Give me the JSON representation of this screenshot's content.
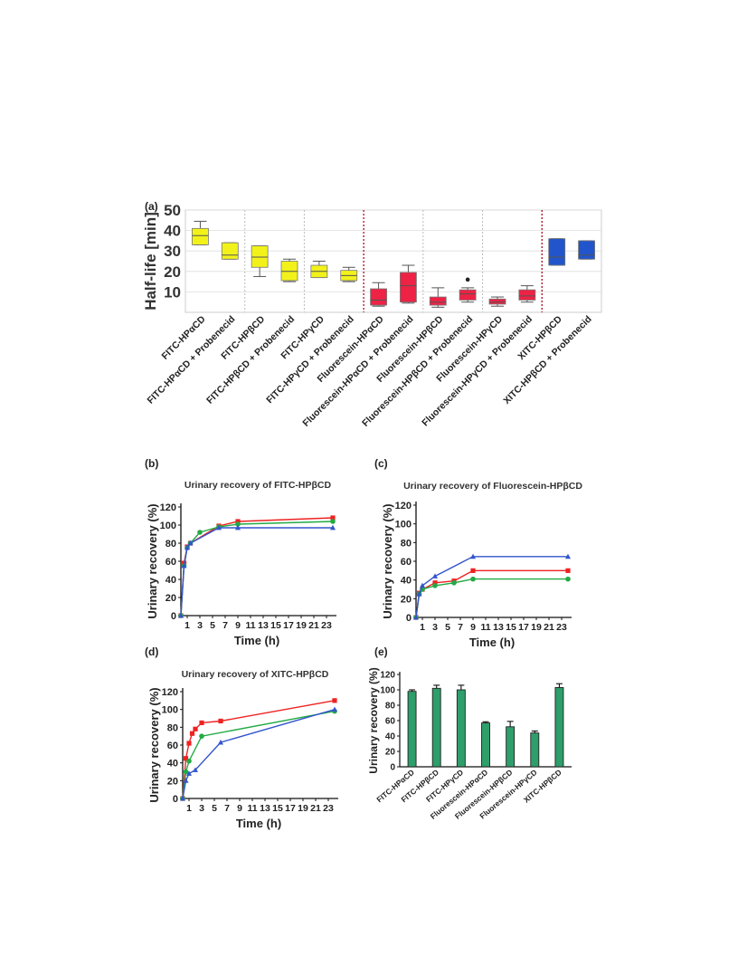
{
  "chart_data": [
    {
      "panel": "(a)",
      "type": "box",
      "ylabel": "Half-life [min]",
      "ylim": [
        0,
        50
      ],
      "yticks": [
        10,
        20,
        30,
        40,
        50
      ],
      "grid": true,
      "groups": [
        {
          "label": "FITC-HPαCD",
          "color": "#f2f21a",
          "min": 33,
          "q1": 33,
          "median": 37.5,
          "q3": 41,
          "max": 44.5
        },
        {
          "label": "FITC-HPαCD + Probenecid",
          "color": "#f2f21a",
          "min": 26,
          "q1": 26,
          "median": 28,
          "q3": 34,
          "max": 34
        },
        {
          "label": "FITC-HPβCD",
          "color": "#f2f21a",
          "min": 17.5,
          "q1": 22,
          "median": 27,
          "q3": 32.5,
          "max": 32.5
        },
        {
          "label": "FITC-HPβCD + Probenecid",
          "color": "#f2f21a",
          "min": 15,
          "q1": 15.5,
          "median": 20,
          "q3": 25,
          "max": 26
        },
        {
          "label": "FITC-HPγCD",
          "color": "#f2f21a",
          "min": 17,
          "q1": 17,
          "median": 20,
          "q3": 23,
          "max": 25
        },
        {
          "label": "FITC-HPγCD + Probenecid",
          "color": "#f2f21a",
          "min": 15,
          "q1": 15.5,
          "median": 18,
          "q3": 20.5,
          "max": 22
        },
        {
          "label": "Fluorescein-HPαCD",
          "color": "#ee2244",
          "min": 3,
          "q1": 3.5,
          "median": 6,
          "q3": 11.5,
          "max": 14.5
        },
        {
          "label": "Fluorescein-HPαCD + Probenecid",
          "color": "#ee2244",
          "min": 4.5,
          "q1": 5,
          "median": 13,
          "q3": 19.5,
          "max": 23
        },
        {
          "label": "Fluorescein-HPβCD",
          "color": "#ee2244",
          "min": 2.5,
          "q1": 3.5,
          "median": 5,
          "q3": 7.5,
          "max": 12
        },
        {
          "label": "Fluorescein-HPβCD + Probenecid",
          "color": "#ee2244",
          "min": 5,
          "q1": 6,
          "median": 9,
          "q3": 11,
          "max": 12,
          "outlier": 16
        },
        {
          "label": "Fluorescein-HPγCD",
          "color": "#ee2244",
          "min": 3,
          "q1": 4,
          "median": 5,
          "q3": 6.5,
          "max": 7.5
        },
        {
          "label": "Fluorescein-HPγCD + Probenecid",
          "color": "#ee2244",
          "min": 5,
          "q1": 6,
          "median": 8,
          "q3": 11,
          "max": 13
        },
        {
          "label": "XITC-HPβCD",
          "color": "#2255cc",
          "min": 23,
          "q1": 23,
          "median": 27,
          "q3": 36,
          "max": 36
        },
        {
          "label": "XITC-HPβCD + Probenecid",
          "color": "#2255cc",
          "min": 26,
          "q1": 26,
          "median": 28,
          "q3": 35,
          "max": 35
        }
      ]
    },
    {
      "panel": "(b)",
      "type": "line",
      "title": "Urinary recovery of FITC-HPβCD",
      "xlabel": "Time (h)",
      "ylabel": "Urinary recovery (%)",
      "xticks": [
        1,
        3,
        5,
        7,
        9,
        11,
        13,
        15,
        17,
        19,
        21,
        23
      ],
      "yticks": [
        0,
        20,
        40,
        60,
        80,
        100,
        120
      ],
      "xlim": [
        0,
        24
      ],
      "ylim": [
        0,
        120
      ],
      "series": [
        {
          "color": "#ee2222",
          "marker": "square",
          "x": [
            0,
            0.5,
            1,
            1.5,
            6,
            9,
            24
          ],
          "y": [
            0,
            58,
            76,
            80,
            99,
            104,
            108
          ]
        },
        {
          "color": "#22aa44",
          "marker": "circle",
          "x": [
            0,
            0.5,
            1,
            1.5,
            3,
            6,
            9,
            24
          ],
          "y": [
            0,
            55,
            75,
            80,
            92,
            98,
            101,
            104
          ]
        },
        {
          "color": "#3355cc",
          "marker": "triangle",
          "x": [
            0,
            0.5,
            1,
            1.5,
            6,
            9,
            24
          ],
          "y": [
            0,
            55,
            75,
            80,
            97,
            97,
            97
          ]
        }
      ]
    },
    {
      "panel": "(c)",
      "type": "line",
      "title": "Urinary recovery of Fluorescein-HPβCD",
      "xlabel": "Time (h)",
      "ylabel": "Urinary recovery (%)",
      "xticks": [
        1,
        3,
        5,
        7,
        9,
        11,
        13,
        15,
        17,
        19,
        21,
        23
      ],
      "yticks": [
        0,
        20,
        40,
        60,
        80,
        100,
        120
      ],
      "xlim": [
        0,
        24
      ],
      "ylim": [
        0,
        120
      ],
      "series": [
        {
          "color": "#ee2222",
          "marker": "square",
          "x": [
            0,
            0.5,
            1,
            3,
            6,
            9,
            24
          ],
          "y": [
            0,
            26,
            30,
            37,
            39,
            50,
            50
          ]
        },
        {
          "color": "#22aa44",
          "marker": "circle",
          "x": [
            0,
            0.5,
            1,
            3,
            6,
            9,
            24
          ],
          "y": [
            0,
            25,
            30,
            34,
            37,
            41,
            41
          ]
        },
        {
          "color": "#3355cc",
          "marker": "triangle",
          "x": [
            0,
            0.5,
            1,
            3,
            9,
            24
          ],
          "y": [
            0,
            25,
            34,
            44,
            65,
            65
          ]
        }
      ]
    },
    {
      "panel": "(d)",
      "type": "line",
      "title": "Urinary recovery of XITC-HPβCD",
      "xlabel": "Time (h)",
      "ylabel": "Urinary recovery (%)",
      "xticks": [
        1,
        3,
        5,
        7,
        9,
        11,
        13,
        15,
        17,
        19,
        21,
        23
      ],
      "yticks": [
        0,
        20,
        40,
        60,
        80,
        100,
        120
      ],
      "xlim": [
        0,
        24
      ],
      "ylim": [
        0,
        120
      ],
      "series": [
        {
          "color": "#ee2222",
          "marker": "square",
          "x": [
            0,
            0.5,
            1,
            1.5,
            2,
            3,
            6,
            24
          ],
          "y": [
            0,
            45,
            62,
            73,
            78,
            85,
            87,
            110
          ]
        },
        {
          "color": "#22aa44",
          "marker": "circle",
          "x": [
            0,
            0.5,
            1,
            3,
            24
          ],
          "y": [
            0,
            30,
            42,
            70,
            98
          ]
        },
        {
          "color": "#3355cc",
          "marker": "triangle",
          "x": [
            0,
            0.5,
            1,
            2,
            6,
            24
          ],
          "y": [
            0,
            20,
            28,
            32,
            63,
            100
          ]
        }
      ]
    },
    {
      "panel": "(e)",
      "type": "bar",
      "ylabel": "Urinary recovery (%)",
      "ylim": [
        0,
        120
      ],
      "yticks": [
        0,
        20,
        40,
        60,
        80,
        100,
        120
      ],
      "color": "#2e9e6a",
      "categories": [
        "FITC-HPαCD",
        "FITC-HPβCD",
        "FITC-HPγCD",
        "Fluorescein-HPαCD",
        "Fluorescein-HPβCD",
        "Fluorescein-HPγCD",
        "XITC-HPβCD"
      ],
      "values": [
        98,
        102,
        100,
        57,
        52,
        44,
        103
      ],
      "errors": [
        2,
        4,
        6,
        1.5,
        7,
        2.5,
        5
      ]
    }
  ]
}
